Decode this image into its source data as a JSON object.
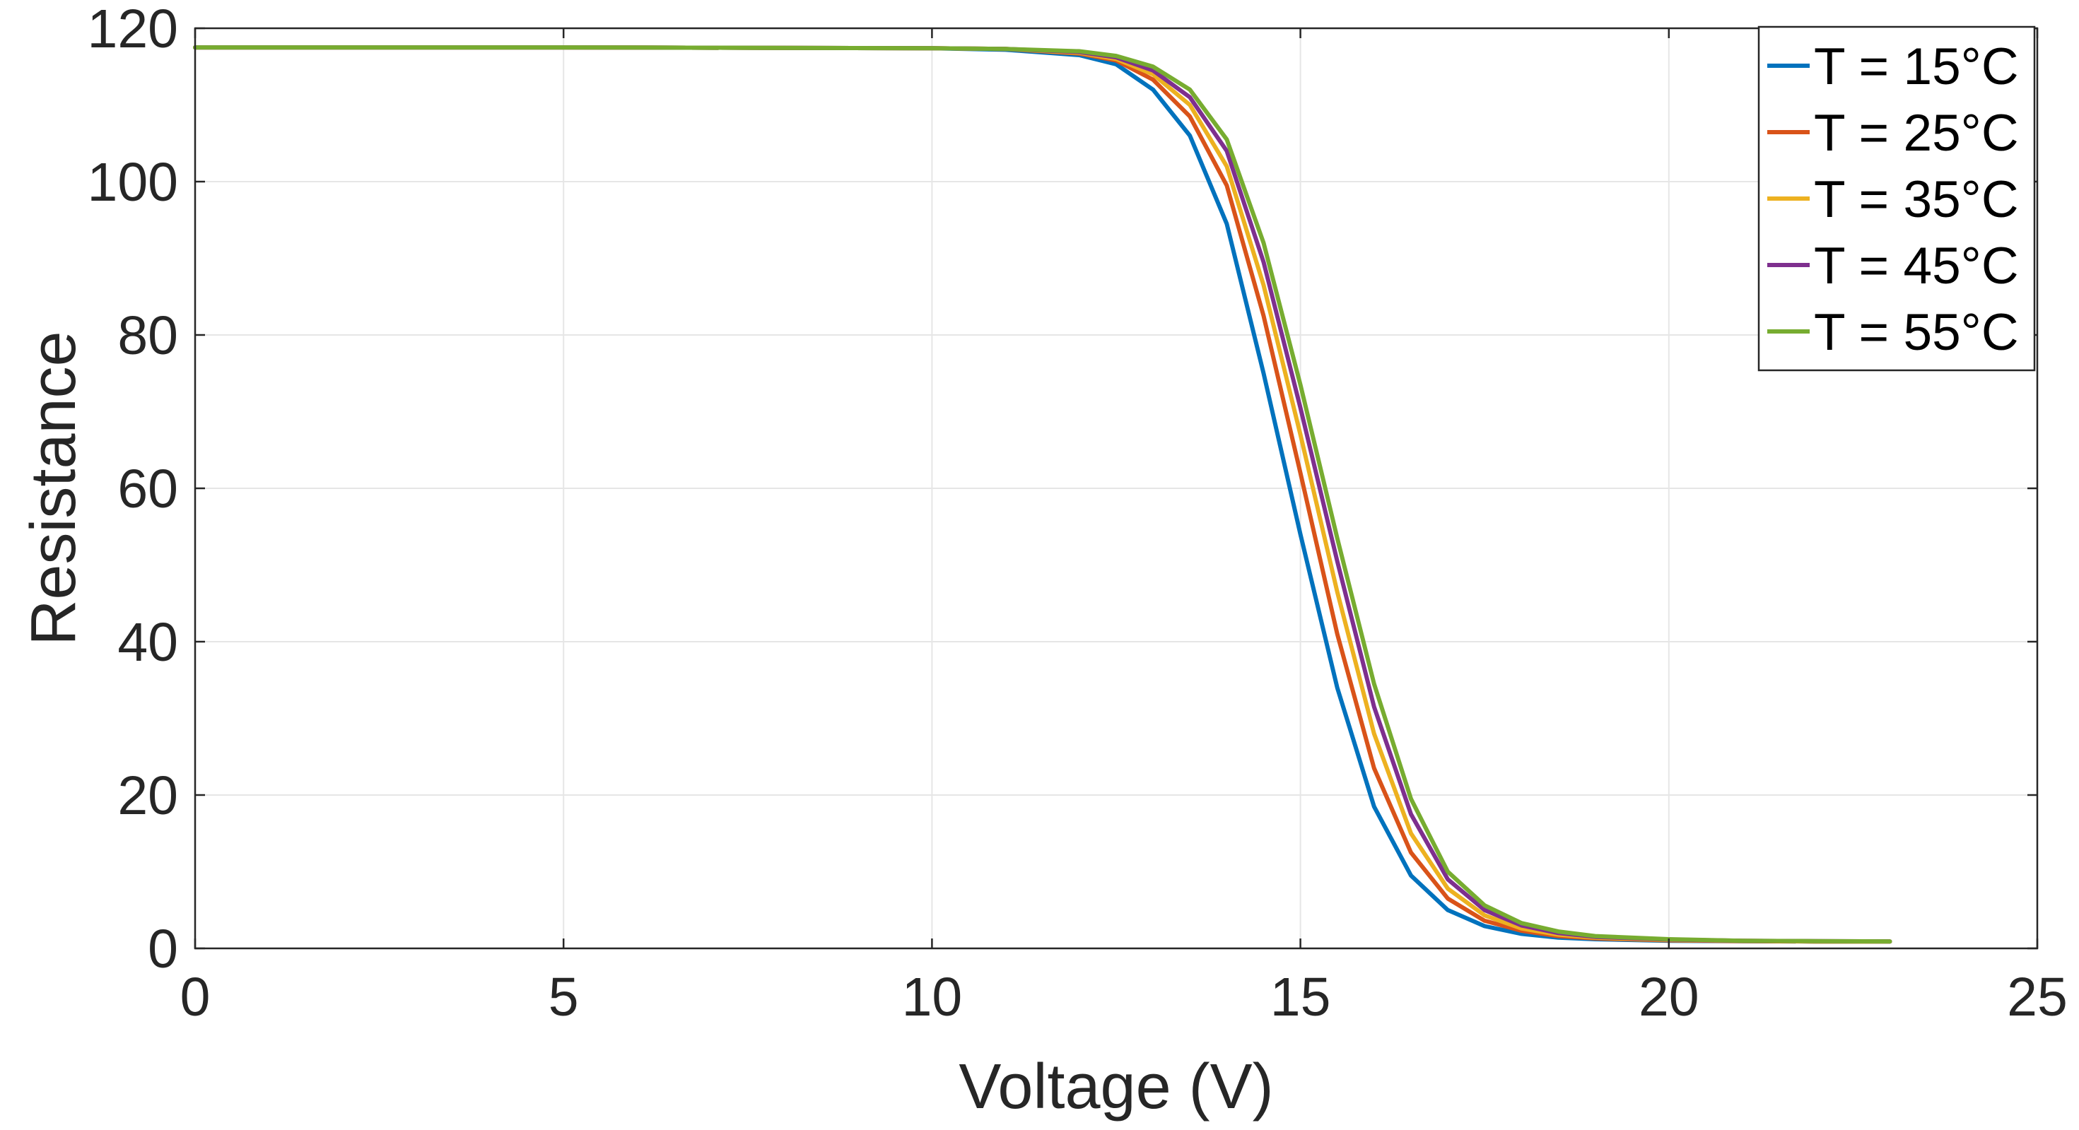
{
  "chart_data": {
    "type": "line",
    "title": "",
    "xlabel": "Voltage (V)",
    "ylabel": "Resistance",
    "xlim": [
      0,
      25
    ],
    "ylim": [
      0,
      120
    ],
    "xticks": [
      0,
      5,
      10,
      15,
      20,
      25
    ],
    "yticks": [
      0,
      20,
      40,
      60,
      80,
      100,
      120
    ],
    "xtick_labels": [
      "0",
      "5",
      "10",
      "15",
      "20",
      "25"
    ],
    "ytick_labels": [
      "0",
      "20",
      "40",
      "60",
      "80",
      "100",
      "120"
    ],
    "grid": true,
    "legend_position": "top-right",
    "x": [
      0,
      5,
      10,
      11,
      12,
      12.5,
      13,
      13.5,
      14,
      14.5,
      15,
      15.5,
      16,
      16.5,
      17,
      17.5,
      18,
      18.5,
      19,
      20,
      21,
      22,
      23
    ],
    "series": [
      {
        "name": "T = 15°C",
        "color": "#0072BD",
        "values": [
          117.5,
          117.5,
          117.4,
          117.2,
          116.5,
          115.3,
          112.0,
          106.0,
          94.5,
          75.0,
          54.0,
          34.0,
          18.5,
          9.5,
          5.0,
          2.9,
          1.9,
          1.4,
          1.2,
          1.0,
          0.95,
          0.9,
          0.9
        ]
      },
      {
        "name": "T = 25°C",
        "color": "#D95319",
        "values": [
          117.5,
          117.5,
          117.4,
          117.3,
          116.7,
          115.8,
          113.3,
          108.5,
          99.5,
          82.5,
          62.0,
          41.0,
          23.5,
          12.5,
          6.5,
          3.6,
          2.3,
          1.6,
          1.3,
          1.05,
          0.95,
          0.9,
          0.9
        ]
      },
      {
        "name": "T = 35°C",
        "color": "#EDB120",
        "values": [
          117.5,
          117.5,
          117.4,
          117.3,
          116.8,
          116.0,
          114.0,
          110.0,
          102.0,
          86.5,
          67.0,
          46.5,
          28.0,
          15.0,
          7.8,
          4.3,
          2.6,
          1.8,
          1.4,
          1.1,
          1.0,
          0.9,
          0.9
        ]
      },
      {
        "name": "T = 45°C",
        "color": "#7E2F8E",
        "values": [
          117.5,
          117.5,
          117.4,
          117.3,
          116.9,
          116.2,
          114.5,
          111.0,
          104.0,
          89.5,
          70.5,
          50.5,
          31.5,
          17.5,
          9.0,
          5.0,
          3.0,
          2.0,
          1.5,
          1.15,
          1.0,
          0.95,
          0.9
        ]
      },
      {
        "name": "T = 55°C",
        "color": "#77AC30",
        "values": [
          117.5,
          117.5,
          117.4,
          117.3,
          117.0,
          116.4,
          115.0,
          112.0,
          105.5,
          92.0,
          73.5,
          53.5,
          34.5,
          19.5,
          10.0,
          5.6,
          3.3,
          2.2,
          1.6,
          1.2,
          1.0,
          0.95,
          0.9
        ]
      }
    ]
  }
}
